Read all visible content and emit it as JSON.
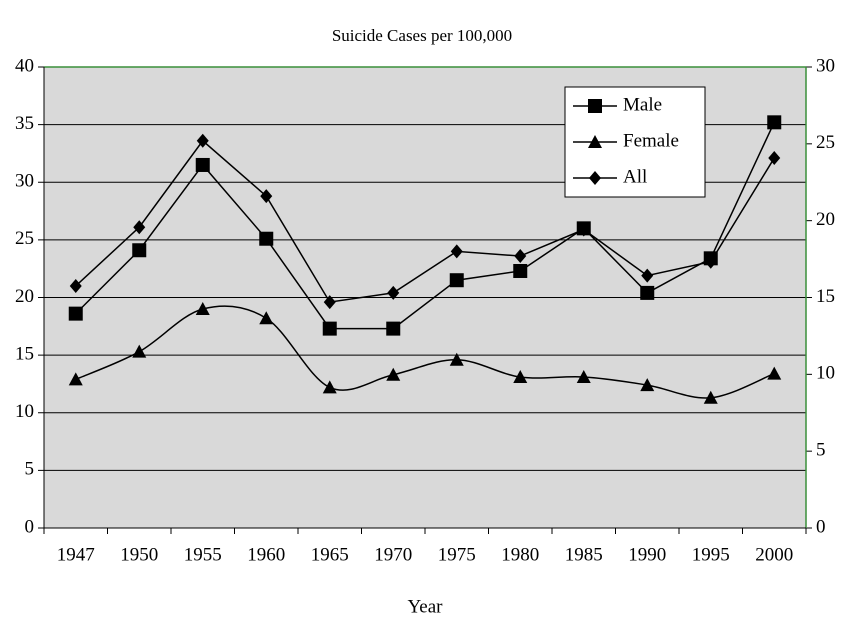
{
  "chart_data": {
    "type": "line",
    "title": "Suicide Cases per 100,000",
    "x_label": "Year",
    "categories": [
      "1947",
      "1950",
      "1955",
      "1960",
      "1965",
      "1970",
      "1975",
      "1980",
      "1985",
      "1990",
      "1995",
      "2000"
    ],
    "series": [
      {
        "name": "Male",
        "color": "#000000",
        "marker": "square",
        "smooth": false,
        "values": [
          18.6,
          24.1,
          31.5,
          25.1,
          17.3,
          17.3,
          21.5,
          22.3,
          26.0,
          20.4,
          23.4,
          35.2
        ]
      },
      {
        "name": "Female",
        "color": "#000000",
        "marker": "triangle",
        "smooth": true,
        "values": [
          12.9,
          15.3,
          19.0,
          18.2,
          12.2,
          13.3,
          14.6,
          13.1,
          13.1,
          12.4,
          11.3,
          13.4
        ]
      },
      {
        "name": "All",
        "color": "#000000",
        "marker": "diamond",
        "smooth": false,
        "values": [
          21.0,
          26.1,
          33.6,
          28.8,
          19.6,
          20.4,
          24.0,
          23.6,
          25.9,
          21.9,
          23.1,
          32.1
        ]
      }
    ],
    "ylim": [
      0,
      40
    ],
    "yticks": [
      0,
      5,
      10,
      15,
      20,
      25,
      30,
      35,
      40
    ],
    "y2lim": [
      0,
      30
    ],
    "y2ticks": [
      0,
      5,
      10,
      15,
      20,
      25,
      30
    ],
    "grid": true,
    "legend": "top-right",
    "plot_background": "#d9d9d9"
  }
}
